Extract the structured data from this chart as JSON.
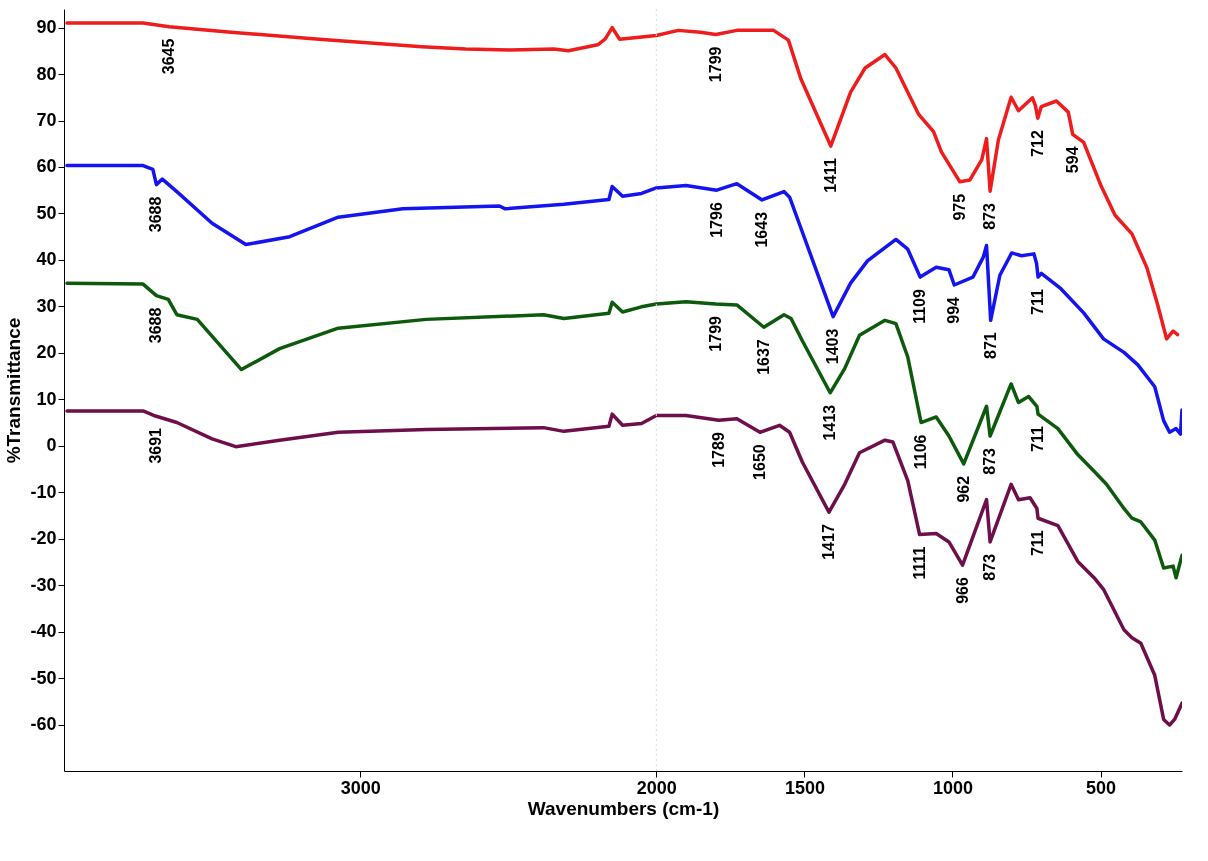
{
  "chart_data": {
    "type": "line",
    "xlabel": "Wavenumbers (cm-1)",
    "ylabel": "%Transmittance",
    "xlim": [
      4000,
      225
    ],
    "xticks": [
      3000,
      2000,
      1500,
      1000,
      500
    ],
    "ylim": [
      -70,
      94
    ],
    "yticks": [
      -60,
      -50,
      -40,
      -30,
      -20,
      -10,
      0,
      10,
      20,
      30,
      40,
      50,
      60,
      70,
      80,
      90
    ],
    "grid": false,
    "legend": false,
    "line_style": "solid",
    "ref_lines": [
      {
        "axis": "x",
        "value": 2000,
        "color": "#dddddd",
        "line_style": "dotted"
      }
    ],
    "series": [
      {
        "color": "#ee1c1c",
        "x": [
          3990,
          3733,
          3645,
          3436,
          3138,
          2792,
          2644,
          2495,
          2346,
          2297,
          2198,
          2173,
          2149,
          2124,
          2000,
          1926,
          1851,
          1799,
          1728,
          1604,
          1554,
          1512,
          1411,
          1344,
          1295,
          1228,
          1191,
          1151,
          1114,
          1064,
          1037,
          975,
          941,
          901,
          885,
          873,
          845,
          802,
          777,
          730,
          720,
          712,
          700,
          649,
          609,
          594,
          557,
          498,
          451,
          394,
          344,
          307,
          277,
          255,
          240
        ],
        "values": [
          91,
          91,
          90.2,
          89,
          87.5,
          85.9,
          85.4,
          85.2,
          85.4,
          85,
          86.3,
          87.5,
          90,
          87.5,
          88.3,
          89.4,
          89,
          88.5,
          89.4,
          89.4,
          87.3,
          79,
          64.5,
          76.1,
          81.3,
          84.2,
          81.3,
          76.1,
          71.3,
          67.6,
          63.2,
          56.8,
          57.2,
          61.6,
          66.1,
          54.8,
          65.8,
          75,
          72.1,
          74.9,
          73.2,
          70.5,
          73,
          74.2,
          71.8,
          67,
          65.3,
          55.9,
          49.6,
          45.6,
          38.4,
          30.3,
          23,
          24.7,
          23.9
        ]
      },
      {
        "color": "#1414f0",
        "x": [
          3990,
          3733,
          3700,
          3688,
          3668,
          3619,
          3500,
          3386,
          3238,
          3074,
          2856,
          2530,
          2510,
          2312,
          2160,
          2149,
          2114,
          2050,
          2000,
          1900,
          1796,
          1728,
          1643,
          1569,
          1550,
          1507,
          1403,
          1344,
          1287,
          1191,
          1151,
          1109,
          1055,
          1012,
          994,
          931,
          896,
          885,
          871,
          840,
          800,
          767,
          725,
          716,
          711,
          700,
          634,
          557,
          490,
          421,
          374,
          317,
          287,
          267,
          245,
          230,
          225
        ],
        "values": [
          60.3,
          60.3,
          59.5,
          56.2,
          57.4,
          54.7,
          47.9,
          43.3,
          45,
          49.2,
          51,
          51.6,
          51,
          52,
          53,
          55.8,
          53.7,
          54.3,
          55.5,
          56,
          55,
          56.4,
          52.9,
          54.7,
          53.5,
          46,
          27.8,
          35,
          39.8,
          44.4,
          42.3,
          36.3,
          38.4,
          37.9,
          34.6,
          36.3,
          40.6,
          43.1,
          27,
          36.7,
          41.5,
          40.9,
          41.3,
          39.2,
          36.3,
          37.1,
          33.8,
          28.6,
          23,
          20.1,
          17.4,
          12.7,
          5.4,
          2.9,
          3.7,
          2.5,
          7.7
        ]
      },
      {
        "color": "#0d5a0d",
        "x": [
          3990,
          3733,
          3688,
          3648,
          3619,
          3550,
          3401,
          3272,
          3074,
          2777,
          2381,
          2312,
          2160,
          2149,
          2114,
          2050,
          2000,
          1900,
          1799,
          1728,
          1637,
          1569,
          1545,
          1507,
          1413,
          1364,
          1314,
          1228,
          1191,
          1151,
          1106,
          1055,
          1012,
          962,
          885,
          873,
          802,
          777,
          743,
          715,
          711,
          644,
          577,
          517,
          480,
          421,
          394,
          364,
          317,
          287,
          255,
          245,
          225
        ],
        "values": [
          35,
          34.8,
          32.3,
          31.5,
          28.2,
          27.2,
          16.4,
          20.9,
          25.3,
          27.2,
          28.2,
          27.4,
          28.5,
          30.9,
          28.8,
          29.9,
          30.5,
          31,
          30.5,
          30.3,
          25.5,
          28.2,
          27.4,
          22.6,
          11.4,
          16.6,
          23.8,
          27,
          26.3,
          19.1,
          5,
          6.2,
          2.1,
          -3.9,
          8.5,
          2.1,
          13.3,
          9.3,
          10.6,
          8.5,
          6.8,
          3.7,
          -1.9,
          -5.8,
          -8.3,
          -13.5,
          -15.6,
          -16.4,
          -20.3,
          -26.3,
          -25.9,
          -28.4,
          -23.6
        ]
      },
      {
        "color": "#6e0f4c",
        "x": [
          3990,
          3733,
          3691,
          3619,
          3500,
          3420,
          3272,
          3074,
          2777,
          2381,
          2312,
          2160,
          2149,
          2114,
          2050,
          2000,
          1900,
          1789,
          1728,
          1650,
          1584,
          1550,
          1507,
          1417,
          1364,
          1314,
          1228,
          1201,
          1151,
          1111,
          1055,
          1012,
          966,
          885,
          873,
          802,
          777,
          738,
          715,
          711,
          644,
          577,
          522,
          490,
          421,
          394,
          364,
          317,
          287,
          267,
          250,
          225
        ],
        "values": [
          7.5,
          7.5,
          6.4,
          5,
          1.5,
          -0.2,
          1.2,
          2.9,
          3.5,
          3.9,
          3.1,
          4.2,
          6.8,
          4.4,
          4.8,
          6.5,
          6.5,
          5.5,
          5.8,
          2.9,
          4.4,
          2.9,
          -3.5,
          -14.3,
          -8.3,
          -1.5,
          1.2,
          0.8,
          -7.5,
          -19.1,
          -18.9,
          -20.7,
          -25.7,
          -11.6,
          -20.7,
          -8.3,
          -11.6,
          -11.2,
          -13.5,
          -15.6,
          -17.2,
          -24.9,
          -28.4,
          -30.9,
          -39.6,
          -41.3,
          -42.5,
          -49.4,
          -58.9,
          -60.1,
          -58.9,
          -55.4
        ]
      }
    ],
    "annotations": [
      {
        "text": "3645",
        "x": 3645,
        "y": 90.2
      },
      {
        "text": "1799",
        "x": 1799,
        "y": 88.5
      },
      {
        "text": "1411",
        "x": 1411,
        "y": 64.5
      },
      {
        "text": "975",
        "x": 975,
        "y": 56.8
      },
      {
        "text": "873",
        "x": 873,
        "y": 54.8
      },
      {
        "text": "712",
        "x": 712,
        "y": 70.5
      },
      {
        "text": "594",
        "x": 594,
        "y": 67
      },
      {
        "text": "3688",
        "x": 3688,
        "y": 56.2
      },
      {
        "text": "1796",
        "x": 1796,
        "y": 55
      },
      {
        "text": "1643",
        "x": 1643,
        "y": 52.9
      },
      {
        "text": "1403",
        "x": 1403,
        "y": 27.8
      },
      {
        "text": "1109",
        "x": 1109,
        "y": 36.3
      },
      {
        "text": "994",
        "x": 994,
        "y": 34.6
      },
      {
        "text": "871",
        "x": 871,
        "y": 27
      },
      {
        "text": "711",
        "x": 711,
        "y": 36.3
      },
      {
        "text": "3688",
        "x": 3688,
        "y": 32.3
      },
      {
        "text": "1799",
        "x": 1799,
        "y": 30.5
      },
      {
        "text": "1637",
        "x": 1637,
        "y": 25.5
      },
      {
        "text": "1413",
        "x": 1413,
        "y": 11.4
      },
      {
        "text": "1106",
        "x": 1106,
        "y": 5
      },
      {
        "text": "962",
        "x": 962,
        "y": -3.9
      },
      {
        "text": "873",
        "x": 873,
        "y": 2.1
      },
      {
        "text": "711",
        "x": 711,
        "y": 6.8
      },
      {
        "text": "3691",
        "x": 3691,
        "y": 6.4
      },
      {
        "text": "1789",
        "x": 1789,
        "y": 5.5
      },
      {
        "text": "1650",
        "x": 1650,
        "y": 2.9
      },
      {
        "text": "1417",
        "x": 1417,
        "y": -14.3
      },
      {
        "text": "1111",
        "x": 1111,
        "y": -19.1
      },
      {
        "text": "966",
        "x": 966,
        "y": -25.7
      },
      {
        "text": "873",
        "x": 873,
        "y": -20.7
      },
      {
        "text": "711",
        "x": 711,
        "y": -15.6
      }
    ]
  }
}
